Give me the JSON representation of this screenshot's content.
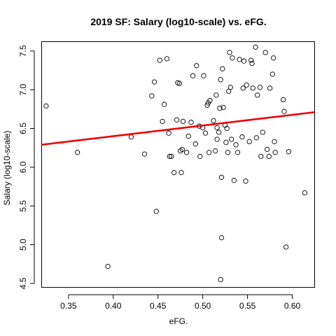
{
  "chart_data": {
    "type": "scatter",
    "title": "2019 SF: Salary (log10-scale) vs. eFG.",
    "xlabel": "eFG.",
    "ylabel": "Salary (log10-scale)",
    "xlim": [
      0.32,
      0.625
    ],
    "ylim": [
      4.45,
      7.62
    ],
    "xticks": [
      0.35,
      0.4,
      0.45,
      0.5,
      0.55,
      0.6
    ],
    "xtick_labels": [
      "0.35",
      "0.40",
      "0.45",
      "0.50",
      "0.55",
      "0.60"
    ],
    "yticks": [
      4.5,
      5.0,
      5.5,
      6.0,
      6.5,
      7.0,
      7.5
    ],
    "ytick_labels": [
      "4.5",
      "5.0",
      "5.5",
      "6.0",
      "6.5",
      "7.0",
      "7.5"
    ],
    "points": [
      [
        0.325,
        6.79
      ],
      [
        0.36,
        6.19
      ],
      [
        0.394,
        4.72
      ],
      [
        0.42,
        6.39
      ],
      [
        0.435,
        6.17
      ],
      [
        0.443,
        6.92
      ],
      [
        0.446,
        7.1
      ],
      [
        0.448,
        5.43
      ],
      [
        0.452,
        7.38
      ],
      [
        0.455,
        6.59
      ],
      [
        0.457,
        6.81
      ],
      [
        0.46,
        7.4
      ],
      [
        0.462,
        6.44
      ],
      [
        0.463,
        6.14
      ],
      [
        0.465,
        6.14
      ],
      [
        0.468,
        5.93
      ],
      [
        0.471,
        6.61
      ],
      [
        0.472,
        7.09
      ],
      [
        0.474,
        7.08
      ],
      [
        0.475,
        6.21
      ],
      [
        0.476,
        5.93
      ],
      [
        0.477,
        6.23
      ],
      [
        0.478,
        6.59
      ],
      [
        0.482,
        6.19
      ],
      [
        0.484,
        6.4
      ],
      [
        0.487,
        6.58
      ],
      [
        0.489,
        7.18
      ],
      [
        0.492,
        6.3
      ],
      [
        0.493,
        7.31
      ],
      [
        0.496,
        6.53
      ],
      [
        0.497,
        6.14
      ],
      [
        0.5,
        6.51
      ],
      [
        0.501,
        7.18
      ],
      [
        0.503,
        6.44
      ],
      [
        0.505,
        6.8
      ],
      [
        0.506,
        6.83
      ],
      [
        0.508,
        6.86
      ],
      [
        0.507,
        6.19
      ],
      [
        0.512,
        6.6
      ],
      [
        0.514,
        6.21
      ],
      [
        0.515,
        6.93
      ],
      [
        0.516,
        6.36
      ],
      [
        0.516,
        6.51
      ],
      [
        0.518,
        6.45
      ],
      [
        0.519,
        6.76
      ],
      [
        0.52,
        7.13
      ],
      [
        0.521,
        5.87
      ],
      [
        0.521,
        5.09
      ],
      [
        0.52,
        4.55
      ],
      [
        0.522,
        7.27
      ],
      [
        0.523,
        6.77
      ],
      [
        0.525,
        6.54
      ],
      [
        0.526,
        6.32
      ],
      [
        0.527,
        6.5
      ],
      [
        0.528,
        6.19
      ],
      [
        0.529,
        6.98
      ],
      [
        0.53,
        7.48
      ],
      [
        0.531,
        7.03
      ],
      [
        0.532,
        6.36
      ],
      [
        0.533,
        7.41
      ],
      [
        0.535,
        5.83
      ],
      [
        0.537,
        6.29
      ],
      [
        0.539,
        6.19
      ],
      [
        0.541,
        7.39
      ],
      [
        0.544,
        6.39
      ],
      [
        0.545,
        7.02
      ],
      [
        0.546,
        7.37
      ],
      [
        0.548,
        5.82
      ],
      [
        0.549,
        7.06
      ],
      [
        0.552,
        6.33
      ],
      [
        0.554,
        7.38
      ],
      [
        0.555,
        7.34
      ],
      [
        0.556,
        7.02
      ],
      [
        0.559,
        7.55
      ],
      [
        0.56,
        6.38
      ],
      [
        0.561,
        6.93
      ],
      [
        0.564,
        7.03
      ],
      [
        0.565,
        6.14
      ],
      [
        0.567,
        6.45
      ],
      [
        0.57,
        7.48
      ],
      [
        0.572,
        6.23
      ],
      [
        0.574,
        6.14
      ],
      [
        0.575,
        7.02
      ],
      [
        0.578,
        7.2
      ],
      [
        0.579,
        7.41
      ],
      [
        0.58,
        6.33
      ],
      [
        0.581,
        6.19
      ],
      [
        0.59,
        6.87
      ],
      [
        0.591,
        6.72
      ],
      [
        0.593,
        4.97
      ],
      [
        0.596,
        6.2
      ],
      [
        0.614,
        5.67
      ]
    ],
    "fit_line": {
      "x": [
        0.32,
        0.625
      ],
      "y": [
        6.29,
        6.71
      ],
      "color": "#ee0000"
    }
  }
}
